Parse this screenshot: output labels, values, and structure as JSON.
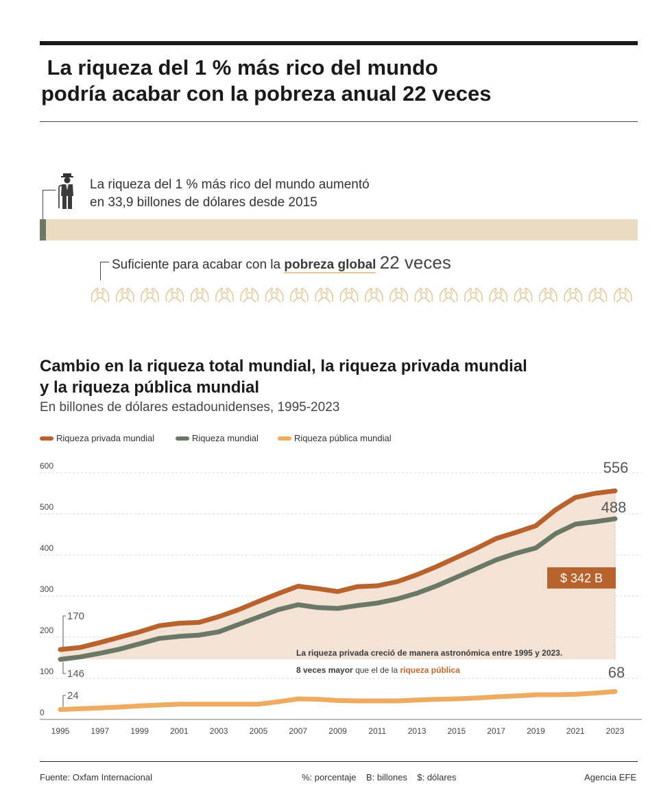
{
  "headline": {
    "line1": " La riqueza del 1 % más rico del mundo",
    "line2": "podría acabar con la pobreza anual 22 veces"
  },
  "intro": {
    "line1": "La riqueza del 1 % más rico del mundo aumentó",
    "line2": "en 33,9 billones de dólares desde 2015",
    "person_icon": "person-icon"
  },
  "sufficient": {
    "prefix": "Suficiente para acabar con la ",
    "bold": "pobreza global",
    "number": "22 veces",
    "icon": "hands-icon",
    "icon_count": 22
  },
  "chart_title": {
    "line1": "Cambio en la riqueza total mundial, la riqueza privada mundial",
    "line2": "y la riqueza pública mundial"
  },
  "chart_subtitle": "En billones de dólares estadounidenses, 1995-2023",
  "legend": [
    {
      "name": "Riqueza privada mundial",
      "color": "#b8622e"
    },
    {
      "name": "Riqueza mundial",
      "color": "#6b7865"
    },
    {
      "name": "Riqueza pública mundial",
      "color": "#eeab62"
    }
  ],
  "chart_data": {
    "type": "line",
    "title": "Cambio en la riqueza total mundial, la riqueza privada mundial y la riqueza pública mundial",
    "subtitle": "En billones de dólares estadounidenses, 1995-2023",
    "ylim": [
      0,
      600
    ],
    "xlim": [
      1995,
      2023
    ],
    "y_ticks": [
      0,
      100,
      200,
      300,
      400,
      500,
      600
    ],
    "x_ticks": [
      1995,
      1997,
      1999,
      2001,
      2003,
      2005,
      2007,
      2009,
      2011,
      2013,
      2015,
      2017,
      2019,
      2021,
      2023
    ],
    "grid": true,
    "legend_position": "top-left",
    "x": [
      1995,
      1996,
      1997,
      1998,
      1999,
      2000,
      2001,
      2002,
      2003,
      2004,
      2005,
      2006,
      2007,
      2008,
      2009,
      2010,
      2011,
      2012,
      2013,
      2014,
      2015,
      2016,
      2017,
      2018,
      2019,
      2020,
      2021,
      2022,
      2023
    ],
    "series": [
      {
        "name": "Riqueza privada mundial",
        "color": "#b8622e",
        "values": [
          170,
          175,
          187,
          200,
          213,
          228,
          234,
          236,
          250,
          267,
          287,
          306,
          324,
          318,
          311,
          323,
          325,
          335,
          352,
          372,
          394,
          416,
          440,
          455,
          471,
          510,
          540,
          550,
          556
        ]
      },
      {
        "name": "Riqueza mundial",
        "color": "#6b7865",
        "values": [
          146,
          152,
          161,
          171,
          184,
          197,
          202,
          205,
          213,
          231,
          249,
          267,
          279,
          272,
          270,
          277,
          283,
          293,
          307,
          325,
          346,
          367,
          388,
          404,
          417,
          452,
          475,
          481,
          488
        ]
      },
      {
        "name": "Riqueza pública mundial",
        "color": "#eeab62",
        "values": [
          24,
          26,
          28,
          30,
          33,
          35,
          37,
          37,
          37,
          37,
          37,
          43,
          50,
          49,
          46,
          45,
          45,
          45,
          47,
          49,
          50,
          52,
          55,
          57,
          60,
          60,
          61,
          64,
          68
        ]
      }
    ],
    "end_labels": {
      "private_start": "170",
      "world_start": "146",
      "public_start": "24",
      "private_end": "556",
      "world_end": "488",
      "public_end": "68"
    },
    "gap_label": "$ 342 B",
    "annotation": {
      "line1": "La riqueza privada creció de manera astronómica entre 1995 y 2023.",
      "line2_bold": "8 veces mayor",
      "line2_mid": " que el de la ",
      "line2_highlight": "riqueza pública"
    }
  },
  "footer": {
    "source": "Fuente: Oxfam Internacional",
    "abbreviations": "%: porcentaje    B: billones    $: dólares",
    "credit": "Agencia EFE"
  }
}
